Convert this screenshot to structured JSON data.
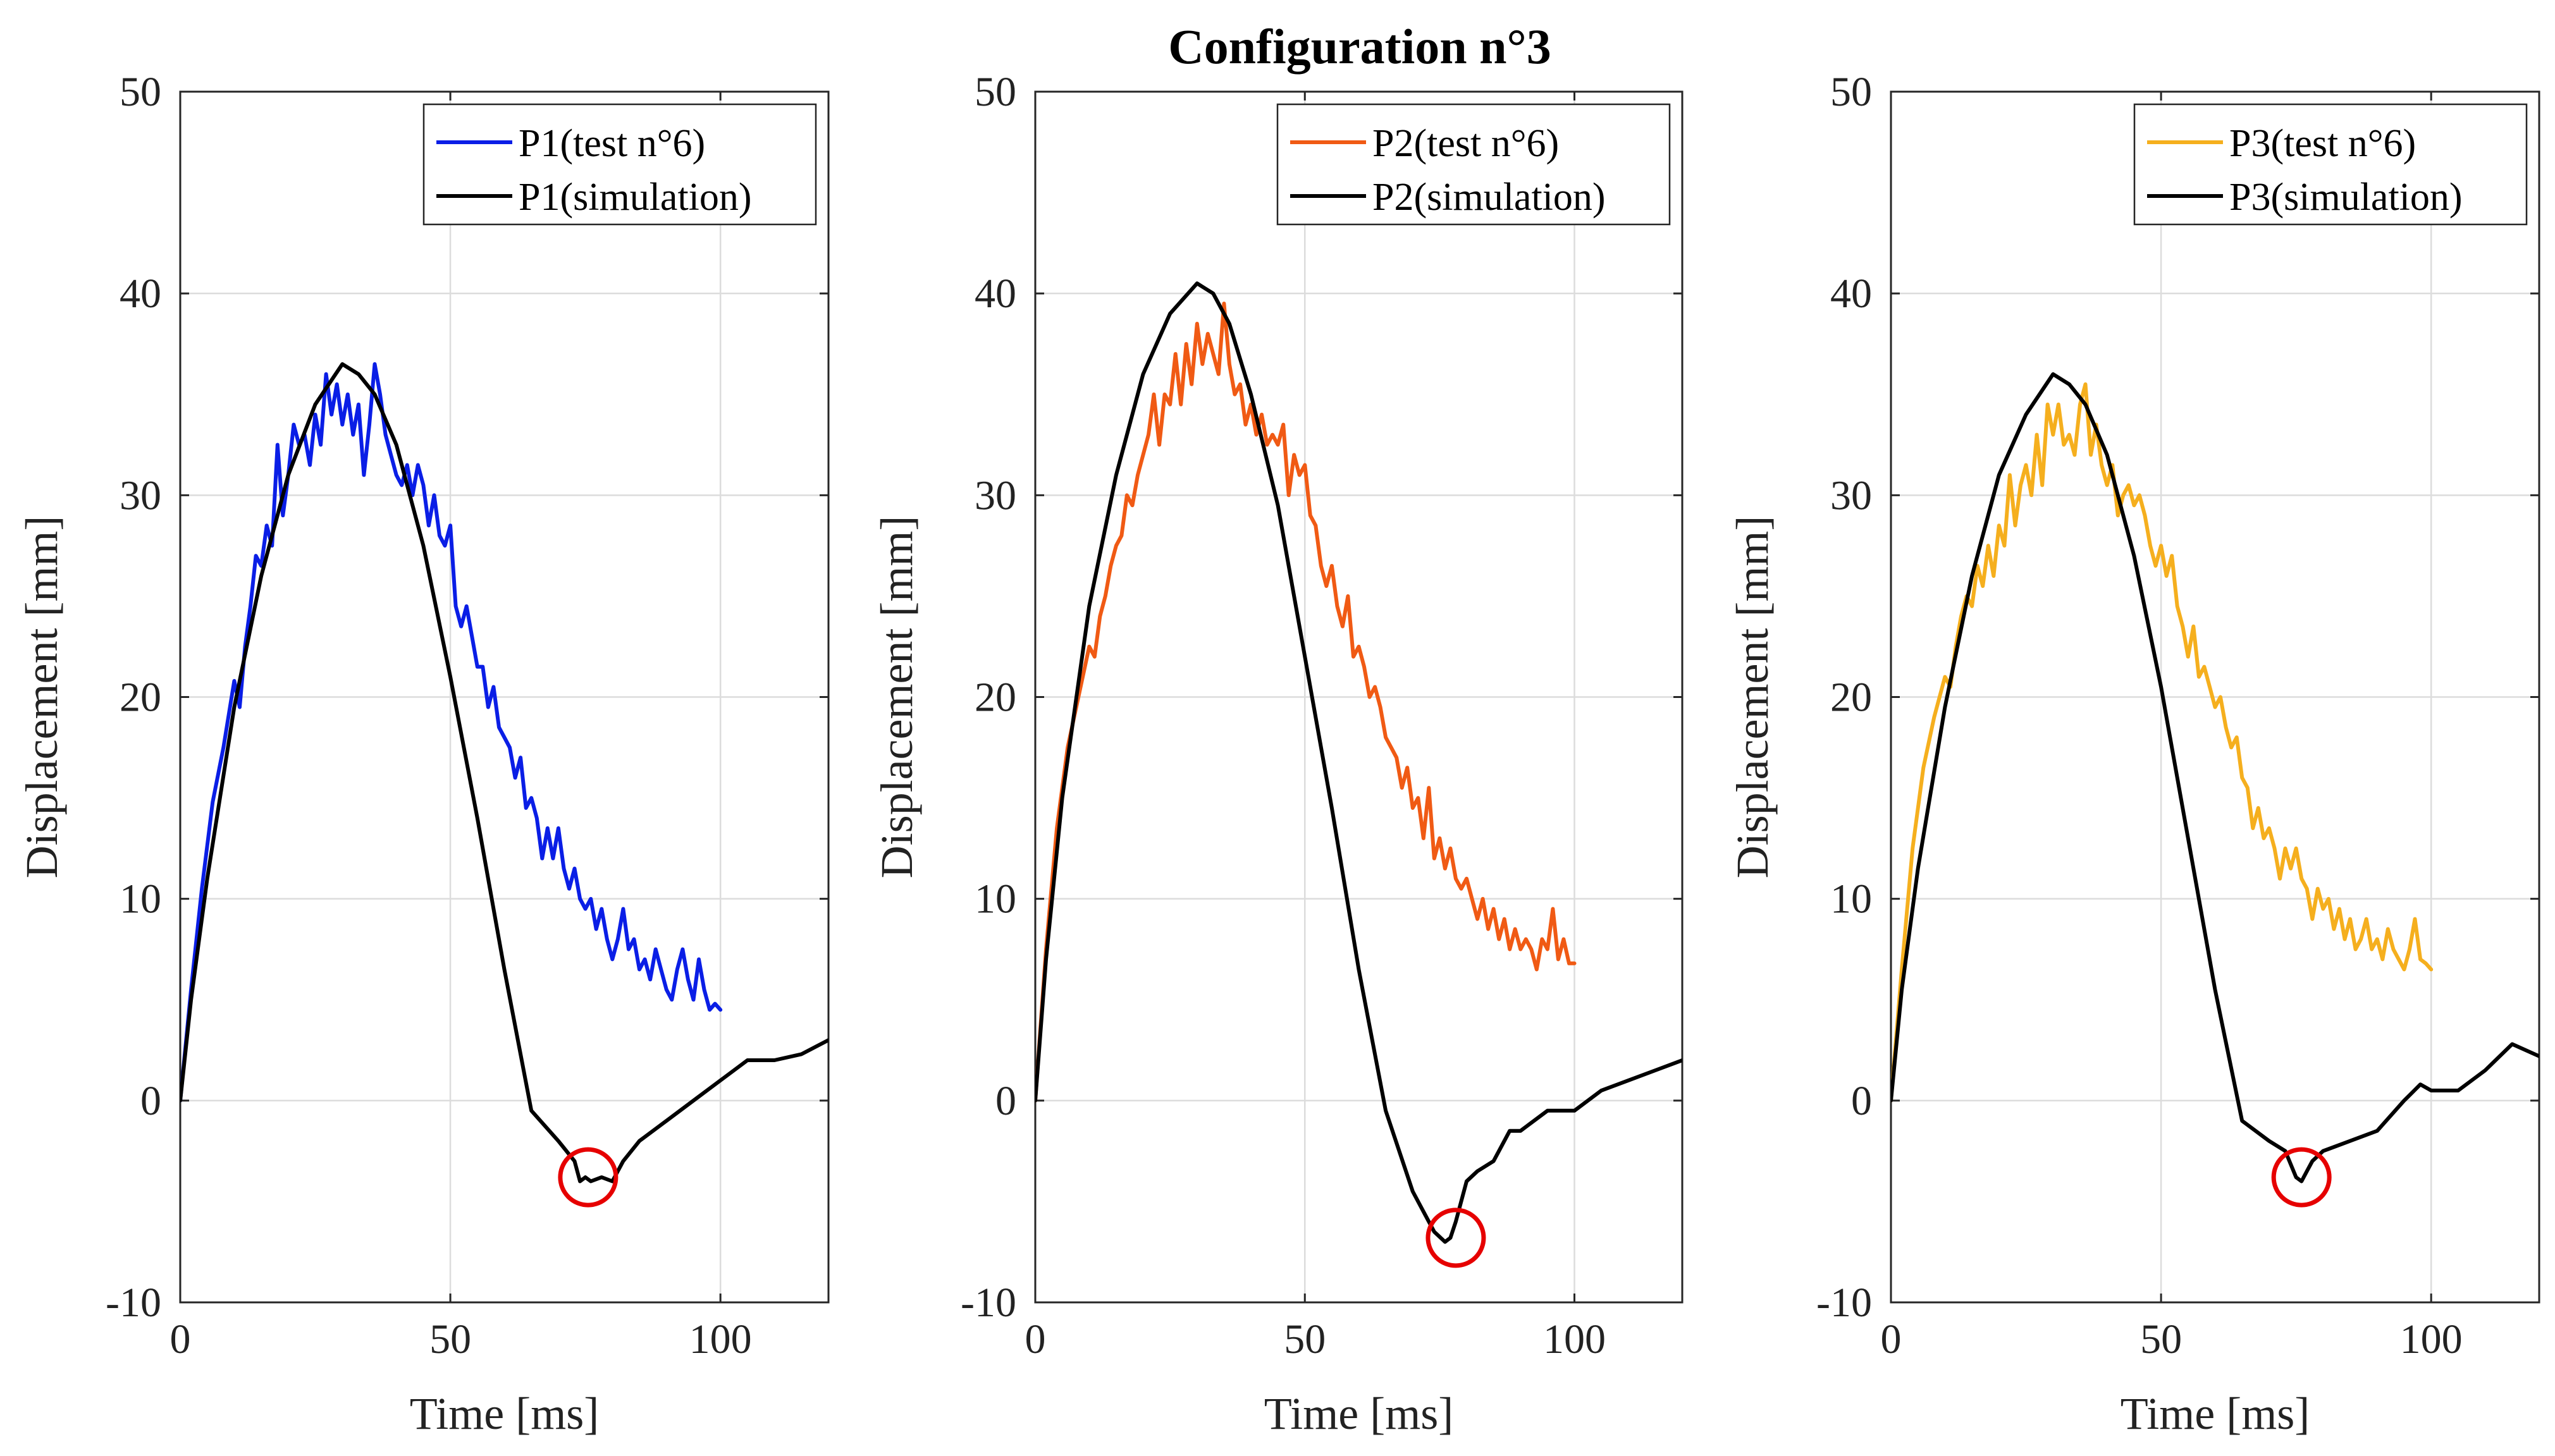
{
  "chart_data": {
    "title": "Configuration n°3",
    "type": "line",
    "panels": [
      {
        "xlabel": "Time [ms]",
        "ylabel": "Displacement [mm]",
        "xlim": [
          0,
          120
        ],
        "ylim": [
          -10,
          50
        ],
        "xticks": [
          0,
          50,
          100
        ],
        "yticks": [
          -10,
          0,
          10,
          20,
          30,
          40,
          50
        ],
        "grid": true,
        "legend_position": "top-right",
        "series": [
          {
            "name": "P1(test n°6)",
            "color": "#0a1ee6",
            "x": [
              0,
              2,
              4,
              6,
              8,
              10,
              11,
              12,
              13,
              14,
              15,
              16,
              17,
              18,
              19,
              20,
              21,
              22,
              23,
              24,
              25,
              26,
              27,
              28,
              29,
              30,
              31,
              32,
              33,
              34,
              35,
              36,
              37,
              38,
              39,
              40,
              41,
              42,
              43,
              44,
              45,
              46,
              47,
              48,
              49,
              50,
              51,
              52,
              53,
              54,
              55,
              56,
              57,
              58,
              59,
              60,
              61,
              62,
              63,
              64,
              65,
              66,
              67,
              68,
              69,
              70,
              71,
              72,
              73,
              74,
              75,
              76,
              77,
              78,
              79,
              80,
              81,
              82,
              83,
              84,
              85,
              86,
              87,
              88,
              89,
              90,
              91,
              92,
              93,
              94,
              95,
              96,
              97,
              98,
              99,
              100
            ],
            "y": [
              0,
              5.5,
              10.5,
              14.8,
              17.5,
              20.8,
              19.5,
              22.5,
              24.5,
              27.0,
              26.5,
              28.5,
              27.5,
              32.5,
              29.0,
              31.0,
              33.5,
              32.5,
              33.0,
              31.5,
              34.0,
              32.5,
              36.0,
              34.0,
              35.5,
              33.5,
              35.0,
              33.0,
              34.5,
              31.0,
              33.5,
              36.5,
              35.0,
              33.0,
              32.0,
              31.0,
              30.5,
              31.5,
              30.0,
              31.5,
              30.5,
              28.5,
              30.0,
              28.0,
              27.5,
              28.5,
              24.5,
              23.5,
              24.5,
              23.0,
              21.5,
              21.5,
              19.5,
              20.5,
              18.5,
              18.0,
              17.5,
              16.0,
              17.0,
              14.5,
              15.0,
              14.0,
              12.0,
              13.5,
              12.0,
              13.5,
              11.5,
              10.5,
              11.5,
              10.0,
              9.5,
              10.0,
              8.5,
              9.5,
              8.0,
              7.0,
              8.0,
              9.5,
              7.5,
              8.0,
              6.5,
              7.0,
              6.0,
              7.5,
              6.5,
              5.5,
              5.0,
              6.5,
              7.5,
              6.0,
              5.0,
              7.0,
              5.5,
              4.5,
              4.8,
              4.5
            ]
          },
          {
            "name": "P1(simulation)",
            "color": "#000000",
            "x": [
              0,
              2,
              5,
              10,
              15,
              20,
              25,
              30,
              33,
              36,
              40,
              45,
              50,
              55,
              60,
              65,
              70,
              73,
              74,
              75,
              76,
              78,
              80,
              82,
              85,
              90,
              95,
              100,
              105,
              110,
              115,
              120
            ],
            "y": [
              0,
              5.0,
              11.0,
              19.5,
              26.0,
              31.0,
              34.5,
              36.5,
              36.0,
              35.0,
              32.5,
              27.5,
              21.0,
              14.0,
              6.5,
              -0.5,
              -2.0,
              -3.0,
              -4.0,
              -3.8,
              -4.0,
              -3.8,
              -4.0,
              -3.0,
              -2.0,
              -1.0,
              0.0,
              1.0,
              2.0,
              2.0,
              2.3,
              3.0
            ]
          }
        ],
        "annotations": [
          {
            "type": "circle-marker",
            "color": "#e60000",
            "x": 75.5,
            "y": -3.8
          }
        ]
      },
      {
        "xlabel": "Time [ms]",
        "ylabel": "Displacement [mm]",
        "xlim": [
          0,
          120
        ],
        "ylim": [
          -10,
          50
        ],
        "xticks": [
          0,
          50,
          100
        ],
        "yticks": [
          -10,
          0,
          10,
          20,
          30,
          40,
          50
        ],
        "grid": true,
        "legend_position": "top-right",
        "series": [
          {
            "name": "P2(test n°6)",
            "color": "#f05a14",
            "x": [
              0,
              2,
              4,
              6,
              8,
              10,
              11,
              12,
              13,
              14,
              15,
              16,
              17,
              18,
              19,
              20,
              21,
              22,
              23,
              24,
              25,
              26,
              27,
              28,
              29,
              30,
              31,
              32,
              33,
              34,
              35,
              36,
              37,
              38,
              39,
              40,
              41,
              42,
              43,
              44,
              45,
              46,
              47,
              48,
              49,
              50,
              51,
              52,
              53,
              54,
              55,
              56,
              57,
              58,
              59,
              60,
              61,
              62,
              63,
              64,
              65,
              66,
              67,
              68,
              69,
              70,
              71,
              72,
              73,
              74,
              75,
              76,
              77,
              78,
              79,
              80,
              81,
              82,
              83,
              84,
              85,
              86,
              87,
              88,
              89,
              90,
              91,
              92,
              93,
              94,
              95,
              96,
              97,
              98,
              99,
              100
            ],
            "y": [
              0,
              7.5,
              13.5,
              17.5,
              20.0,
              22.5,
              22.0,
              24.0,
              25.0,
              26.5,
              27.5,
              28.0,
              30.0,
              29.5,
              31.0,
              32.0,
              33.0,
              35.0,
              32.5,
              35.0,
              34.5,
              37.0,
              34.5,
              37.5,
              35.5,
              38.5,
              36.5,
              38.0,
              37.0,
              36.0,
              39.5,
              36.5,
              35.0,
              35.5,
              33.5,
              34.5,
              33.0,
              34.0,
              32.5,
              33.0,
              32.5,
              33.5,
              30.0,
              32.0,
              31.0,
              31.5,
              29.0,
              28.5,
              26.5,
              25.5,
              26.5,
              24.5,
              23.5,
              25.0,
              22.0,
              22.5,
              21.5,
              20.0,
              20.5,
              19.5,
              18.0,
              17.5,
              17.0,
              15.5,
              16.5,
              14.5,
              15.0,
              13.0,
              15.5,
              12.0,
              13.0,
              11.5,
              12.5,
              11.0,
              10.5,
              11.0,
              10.0,
              9.0,
              10.0,
              8.5,
              9.5,
              8.0,
              9.0,
              7.5,
              8.5,
              7.5,
              8.0,
              7.5,
              6.5,
              8.0,
              7.5,
              9.5,
              7.0,
              8.0,
              6.8,
              6.8
            ]
          },
          {
            "name": "P2(simulation)",
            "color": "#000000",
            "x": [
              0,
              2,
              5,
              10,
              15,
              20,
              25,
              30,
              33,
              36,
              40,
              45,
              50,
              55,
              60,
              65,
              70,
              74,
              76,
              77,
              78,
              80,
              82,
              85,
              88,
              90,
              95,
              100,
              105,
              110,
              115,
              120
            ],
            "y": [
              0,
              7.0,
              15.0,
              24.5,
              31.0,
              36.0,
              39.0,
              40.5,
              40.0,
              38.5,
              35.0,
              29.5,
              22.0,
              14.5,
              6.5,
              -0.5,
              -4.5,
              -6.5,
              -7.0,
              -6.8,
              -6.0,
              -4.0,
              -3.5,
              -3.0,
              -1.5,
              -1.5,
              -0.5,
              -0.5,
              0.5,
              1.0,
              1.5,
              2.0
            ]
          }
        ],
        "annotations": [
          {
            "type": "circle-marker",
            "color": "#e60000",
            "x": 78,
            "y": -6.8
          }
        ]
      },
      {
        "xlabel": "Time [ms]",
        "ylabel": "Displacement [mm]",
        "xlim": [
          0,
          120
        ],
        "ylim": [
          -10,
          50
        ],
        "xticks": [
          0,
          50,
          100
        ],
        "yticks": [
          -10,
          0,
          10,
          20,
          30,
          40,
          50
        ],
        "grid": true,
        "legend_position": "top-right",
        "series": [
          {
            "name": "P3(test n°6)",
            "color": "#f5af1e",
            "x": [
              0,
              2,
              4,
              6,
              8,
              10,
              11,
              12,
              13,
              14,
              15,
              16,
              17,
              18,
              19,
              20,
              21,
              22,
              23,
              24,
              25,
              26,
              27,
              28,
              29,
              30,
              31,
              32,
              33,
              34,
              35,
              36,
              37,
              38,
              39,
              40,
              41,
              42,
              43,
              44,
              45,
              46,
              47,
              48,
              49,
              50,
              51,
              52,
              53,
              54,
              55,
              56,
              57,
              58,
              59,
              60,
              61,
              62,
              63,
              64,
              65,
              66,
              67,
              68,
              69,
              70,
              71,
              72,
              73,
              74,
              75,
              76,
              77,
              78,
              79,
              80,
              81,
              82,
              83,
              84,
              85,
              86,
              87,
              88,
              89,
              90,
              91,
              92,
              93,
              94,
              95,
              96,
              97,
              98,
              99,
              100
            ],
            "y": [
              0,
              6.5,
              12.5,
              16.5,
              19.0,
              21.0,
              20.5,
              22.5,
              24.0,
              25.0,
              24.5,
              26.5,
              25.5,
              27.5,
              26.0,
              28.5,
              27.5,
              31.0,
              28.5,
              30.5,
              31.5,
              30.0,
              33.0,
              30.5,
              34.5,
              33.0,
              34.5,
              32.5,
              33.0,
              32.0,
              34.5,
              35.5,
              32.0,
              33.5,
              31.5,
              30.5,
              31.5,
              29.0,
              30.0,
              30.5,
              29.5,
              30.0,
              29.0,
              27.5,
              26.5,
              27.5,
              26.0,
              27.0,
              24.5,
              23.5,
              22.0,
              23.5,
              21.0,
              21.5,
              20.5,
              19.5,
              20.0,
              18.5,
              17.5,
              18.0,
              16.0,
              15.5,
              13.5,
              14.5,
              13.0,
              13.5,
              12.5,
              11.0,
              12.5,
              11.5,
              12.5,
              11.0,
              10.5,
              9.0,
              10.5,
              9.5,
              10.0,
              8.5,
              9.5,
              8.0,
              9.0,
              7.5,
              8.0,
              9.0,
              7.5,
              8.0,
              7.0,
              8.5,
              7.5,
              7.0,
              6.5,
              7.5,
              9.0,
              7.0,
              6.8,
              6.5
            ]
          },
          {
            "name": "P3(simulation)",
            "color": "#000000",
            "x": [
              0,
              2,
              5,
              10,
              15,
              20,
              25,
              30,
              33,
              36,
              40,
              45,
              50,
              55,
              60,
              65,
              70,
              73,
              75,
              76,
              77,
              78,
              80,
              85,
              90,
              95,
              98,
              100,
              105,
              110,
              115,
              120
            ],
            "y": [
              0,
              5.5,
              11.5,
              19.5,
              26.0,
              31.0,
              34.0,
              36.0,
              35.5,
              34.5,
              32.0,
              27.0,
              20.5,
              13.0,
              5.5,
              -1.0,
              -2.0,
              -2.5,
              -3.8,
              -4.0,
              -3.5,
              -3.0,
              -2.5,
              -2.0,
              -1.5,
              0.0,
              0.8,
              0.5,
              0.5,
              1.5,
              2.8,
              2.2
            ]
          }
        ],
        "annotations": [
          {
            "type": "circle-marker",
            "color": "#e60000",
            "x": 76,
            "y": -3.8
          }
        ]
      }
    ]
  }
}
